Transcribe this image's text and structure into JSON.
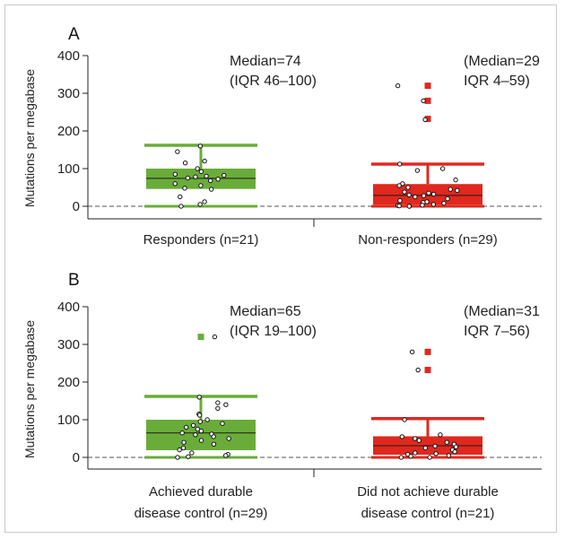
{
  "chart_data": [
    {
      "type": "box",
      "panel_label": "A",
      "ylabel": "Mutations per megabase",
      "ylim": [
        0,
        400
      ],
      "yticks": [
        0,
        100,
        200,
        300,
        400
      ],
      "reference_line": 0,
      "groups": [
        {
          "category": "Responders (n=21)",
          "color": "#6aac3a",
          "annotation": [
            "Median=74",
            "(IQR 46–100)"
          ],
          "median": 74,
          "q1": 46,
          "q3": 100,
          "whisker_low": 0,
          "whisker_high": 162,
          "outliers": [],
          "points": [
            160,
            120,
            145,
            115,
            100,
            92,
            85,
            82,
            80,
            78,
            75,
            72,
            68,
            60,
            55,
            48,
            45,
            25,
            12,
            5,
            0
          ]
        },
        {
          "category": "Non-responders (n=29)",
          "color": "#e0281e",
          "annotation": [
            "(Median=29",
            "IQR 4–59)"
          ],
          "median": 29,
          "q1": 4,
          "q3": 59,
          "whisker_low": 0,
          "whisker_high": 112,
          "outliers": [
            320,
            280,
            232
          ],
          "points": [
            320,
            280,
            230,
            112,
            100,
            95,
            70,
            60,
            55,
            50,
            45,
            42,
            38,
            35,
            32,
            30,
            28,
            25,
            20,
            15,
            12,
            10,
            8,
            5,
            3,
            2,
            1,
            0,
            0
          ]
        }
      ]
    },
    {
      "type": "box",
      "panel_label": "B",
      "ylabel": "Mutations per megabase",
      "ylim": [
        0,
        400
      ],
      "yticks": [
        0,
        100,
        200,
        300,
        400
      ],
      "reference_line": 0,
      "groups": [
        {
          "category": "Achieved durable disease control (n=29)",
          "category_lines": [
            "Achieved durable",
            "disease control (n=29)"
          ],
          "color": "#6aac3a",
          "annotation": [
            "Median=65",
            "(IQR 19–100)"
          ],
          "median": 65,
          "q1": 19,
          "q3": 100,
          "whisker_low": 0,
          "whisker_high": 162,
          "outliers": [
            320
          ],
          "points": [
            320,
            160,
            145,
            140,
            130,
            115,
            112,
            100,
            95,
            90,
            85,
            80,
            75,
            70,
            65,
            62,
            60,
            55,
            50,
            45,
            40,
            35,
            25,
            20,
            12,
            8,
            5,
            2,
            0
          ]
        },
        {
          "category": "Did not achieve durable disease control (n=21)",
          "category_lines": [
            "Did not achieve durable",
            "disease control (n=21)"
          ],
          "color": "#e0281e",
          "annotation": [
            "(Median=31",
            "IQR 7–56)"
          ],
          "median": 31,
          "q1": 7,
          "q3": 56,
          "whisker_low": 0,
          "whisker_high": 103,
          "outliers": [
            280,
            232
          ],
          "points": [
            280,
            232,
            100,
            60,
            55,
            50,
            45,
            40,
            35,
            30,
            28,
            25,
            20,
            15,
            12,
            10,
            8,
            5,
            3,
            0,
            0
          ]
        }
      ]
    }
  ]
}
